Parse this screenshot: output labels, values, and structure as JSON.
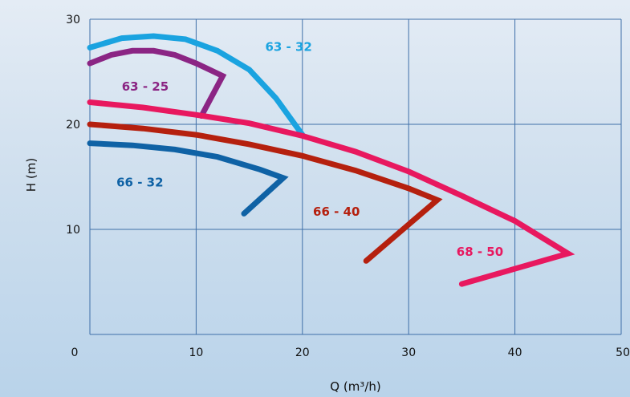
{
  "chart_data": {
    "type": "line",
    "xlabel": "Q (m³/h)",
    "ylabel": "H (m)",
    "xlim": [
      0,
      50
    ],
    "ylim": [
      0,
      30
    ],
    "grid": true,
    "x_ticks": [
      "0",
      "10",
      "20",
      "30",
      "40",
      "50"
    ],
    "y_ticks": [
      "10",
      "20",
      "30"
    ],
    "series": [
      {
        "name": "63 - 32",
        "color": "#1aa3e0",
        "label_at": [
          16.5,
          27.0
        ],
        "points": [
          [
            0,
            27.3
          ],
          [
            3,
            28.2
          ],
          [
            6,
            28.4
          ],
          [
            9,
            28.1
          ],
          [
            12,
            27.0
          ],
          [
            15,
            25.2
          ],
          [
            17.5,
            22.5
          ],
          [
            20,
            19.0
          ]
        ]
      },
      {
        "name": "63 - 25",
        "color": "#8b2584",
        "label_at": [
          3,
          23.2
        ],
        "points": [
          [
            0,
            25.8
          ],
          [
            2,
            26.6
          ],
          [
            4,
            27.0
          ],
          [
            6,
            27.0
          ],
          [
            8,
            26.6
          ],
          [
            10,
            25.8
          ],
          [
            12.5,
            24.6
          ],
          [
            10.5,
            20.8
          ]
        ]
      },
      {
        "name": "68 - 50",
        "color": "#e8185f",
        "label_at": [
          34.5,
          7.5
        ],
        "points": [
          [
            0,
            22.1
          ],
          [
            5,
            21.6
          ],
          [
            10,
            20.9
          ],
          [
            15,
            20.1
          ],
          [
            20,
            18.9
          ],
          [
            25,
            17.4
          ],
          [
            30,
            15.5
          ],
          [
            35,
            13.2
          ],
          [
            40,
            10.8
          ],
          [
            45,
            7.7
          ],
          [
            35,
            4.8
          ]
        ]
      },
      {
        "name": "66 - 40",
        "color": "#b5200e",
        "label_at": [
          21,
          11.3
        ],
        "points": [
          [
            0,
            20.0
          ],
          [
            5,
            19.6
          ],
          [
            10,
            19.0
          ],
          [
            15,
            18.1
          ],
          [
            20,
            17.0
          ],
          [
            25,
            15.6
          ],
          [
            30,
            13.9
          ],
          [
            32.7,
            12.8
          ],
          [
            26,
            7.0
          ]
        ]
      },
      {
        "name": "66 - 32",
        "color": "#0f62a5",
        "label_at": [
          2.5,
          14.1
        ],
        "points": [
          [
            0,
            18.2
          ],
          [
            4,
            18.0
          ],
          [
            8,
            17.6
          ],
          [
            12,
            16.9
          ],
          [
            16,
            15.7
          ],
          [
            18.2,
            14.9
          ],
          [
            14.5,
            11.5
          ]
        ]
      }
    ]
  }
}
